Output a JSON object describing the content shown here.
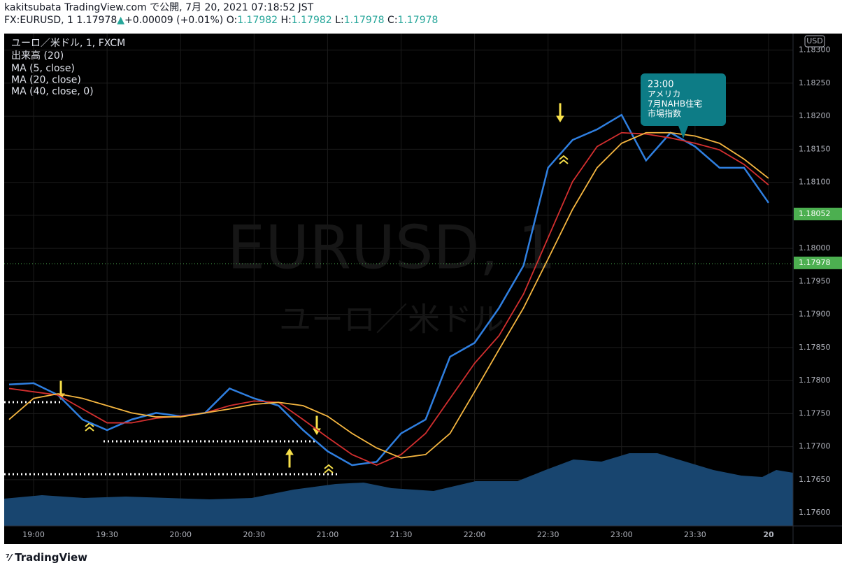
{
  "header": {
    "line1": "kakitsubata TradingView.com で公開, 7月 20, 2021 07:18:52 JST",
    "symbol": "FX:EURUSD, 1 1.17978",
    "arrow": "▲",
    "change": "+0.00009 (+0.01%)",
    "o_label": "O:",
    "o": "1.17982",
    "h_label": "H:",
    "h": "1.17982",
    "l_label": "L:",
    "l": "1.17978",
    "c_label": "C:",
    "c": "1.17978"
  },
  "footer": "TradingView",
  "chart_data": {
    "type": "line",
    "symbol_line": "ユーロ／米ドル, 1, FXCM",
    "volume_label": "出来高 (20)",
    "watermark": [
      "EURUSD, 1",
      "ユーロ／米ドル"
    ],
    "currency": "USD",
    "annotation": [
      "23:00",
      "アメリカ",
      "7月NAHB住宅",
      "市場指数"
    ],
    "x": [
      1130,
      1140,
      1150,
      1160,
      1170,
      1180,
      1190,
      1200,
      1210,
      1220,
      1230,
      1240,
      1250,
      1260,
      1270,
      1280,
      1290,
      1300,
      1310,
      1320,
      1330,
      1340,
      1350,
      1360,
      1370,
      1380,
      1390,
      1400,
      1410,
      1420,
      1430,
      1440
    ],
    "xlim": [
      1128,
      1450
    ],
    "xticks": [
      {
        "value": 1140,
        "label": "19:00"
      },
      {
        "value": 1170,
        "label": "19:30"
      },
      {
        "value": 1200,
        "label": "20:00"
      },
      {
        "value": 1230,
        "label": "20:30"
      },
      {
        "value": 1260,
        "label": "21:00"
      },
      {
        "value": 1290,
        "label": "21:30"
      },
      {
        "value": 1320,
        "label": "22:00"
      },
      {
        "value": 1350,
        "label": "22:30"
      },
      {
        "value": 1380,
        "label": "23:00"
      },
      {
        "value": 1410,
        "label": "23:30"
      },
      {
        "value": 1440,
        "label": "20"
      }
    ],
    "ylim": [
      1.1758,
      1.18325
    ],
    "yticks": [
      {
        "value": 1.176,
        "label": "1.17600"
      },
      {
        "value": 1.1765,
        "label": "1.17650"
      },
      {
        "value": 1.177,
        "label": "1.17700"
      },
      {
        "value": 1.1775,
        "label": "1.17750"
      },
      {
        "value": 1.178,
        "label": "1.17800"
      },
      {
        "value": 1.1785,
        "label": "1.17850"
      },
      {
        "value": 1.179,
        "label": "1.17900"
      },
      {
        "value": 1.1795,
        "label": "1.17950"
      },
      {
        "value": 1.18,
        "label": "1.18000"
      },
      {
        "value": 1.1805,
        "label": "1.18050"
      },
      {
        "value": 1.181,
        "label": "1.18100"
      },
      {
        "value": 1.1815,
        "label": "1.18150"
      },
      {
        "value": 1.182,
        "label": "1.18200"
      },
      {
        "value": 1.1825,
        "label": "1.18250"
      },
      {
        "value": 1.183,
        "label": "1.18300"
      }
    ],
    "grid": true,
    "price_labels": [
      {
        "value": 1.18052,
        "label": "1.18052",
        "color": "#4caf50"
      },
      {
        "value": 1.17978,
        "label": "1.17978",
        "color": "#4caf50"
      }
    ],
    "series": [
      {
        "name": "MA (5, close)",
        "color": "#2f7fe0",
        "values": [
          1.17794,
          1.17796,
          1.17778,
          1.17741,
          1.17725,
          1.17741,
          1.17751,
          1.17746,
          1.17751,
          1.17788,
          1.17773,
          1.17762,
          1.17725,
          1.17693,
          1.17672,
          1.17677,
          1.1772,
          1.17741,
          1.17836,
          1.17857,
          1.1791,
          1.17974,
          1.18122,
          1.18164,
          1.1818,
          1.18202,
          1.18133,
          1.18175,
          1.18154,
          1.18122,
          1.18122,
          1.18069
        ]
      },
      {
        "name": "MA (20, close)",
        "color": "#d32f2f",
        "values": [
          1.17788,
          1.17783,
          1.17778,
          1.17757,
          1.17736,
          1.17736,
          1.17743,
          1.17746,
          1.17751,
          1.17762,
          1.17769,
          1.17767,
          1.17741,
          1.17714,
          1.17688,
          1.17672,
          1.17688,
          1.1772,
          1.17773,
          1.17826,
          1.17868,
          1.17931,
          1.18016,
          1.18101,
          1.18154,
          1.18175,
          1.18173,
          1.18167,
          1.18159,
          1.18149,
          1.18127,
          1.18096
        ]
      },
      {
        "name": "MA (40, close, 0)",
        "color": "#f5b640",
        "values": [
          1.17741,
          1.17773,
          1.1778,
          1.17773,
          1.17762,
          1.17751,
          1.17745,
          1.17745,
          1.17751,
          1.17757,
          1.17764,
          1.17767,
          1.17762,
          1.17746,
          1.1772,
          1.17698,
          1.17683,
          1.17688,
          1.1772,
          1.17783,
          1.17847,
          1.1791,
          1.17984,
          1.18059,
          1.18122,
          1.18159,
          1.18175,
          1.18175,
          1.1817,
          1.18159,
          1.18135,
          1.18106
        ]
      }
    ]
  }
}
